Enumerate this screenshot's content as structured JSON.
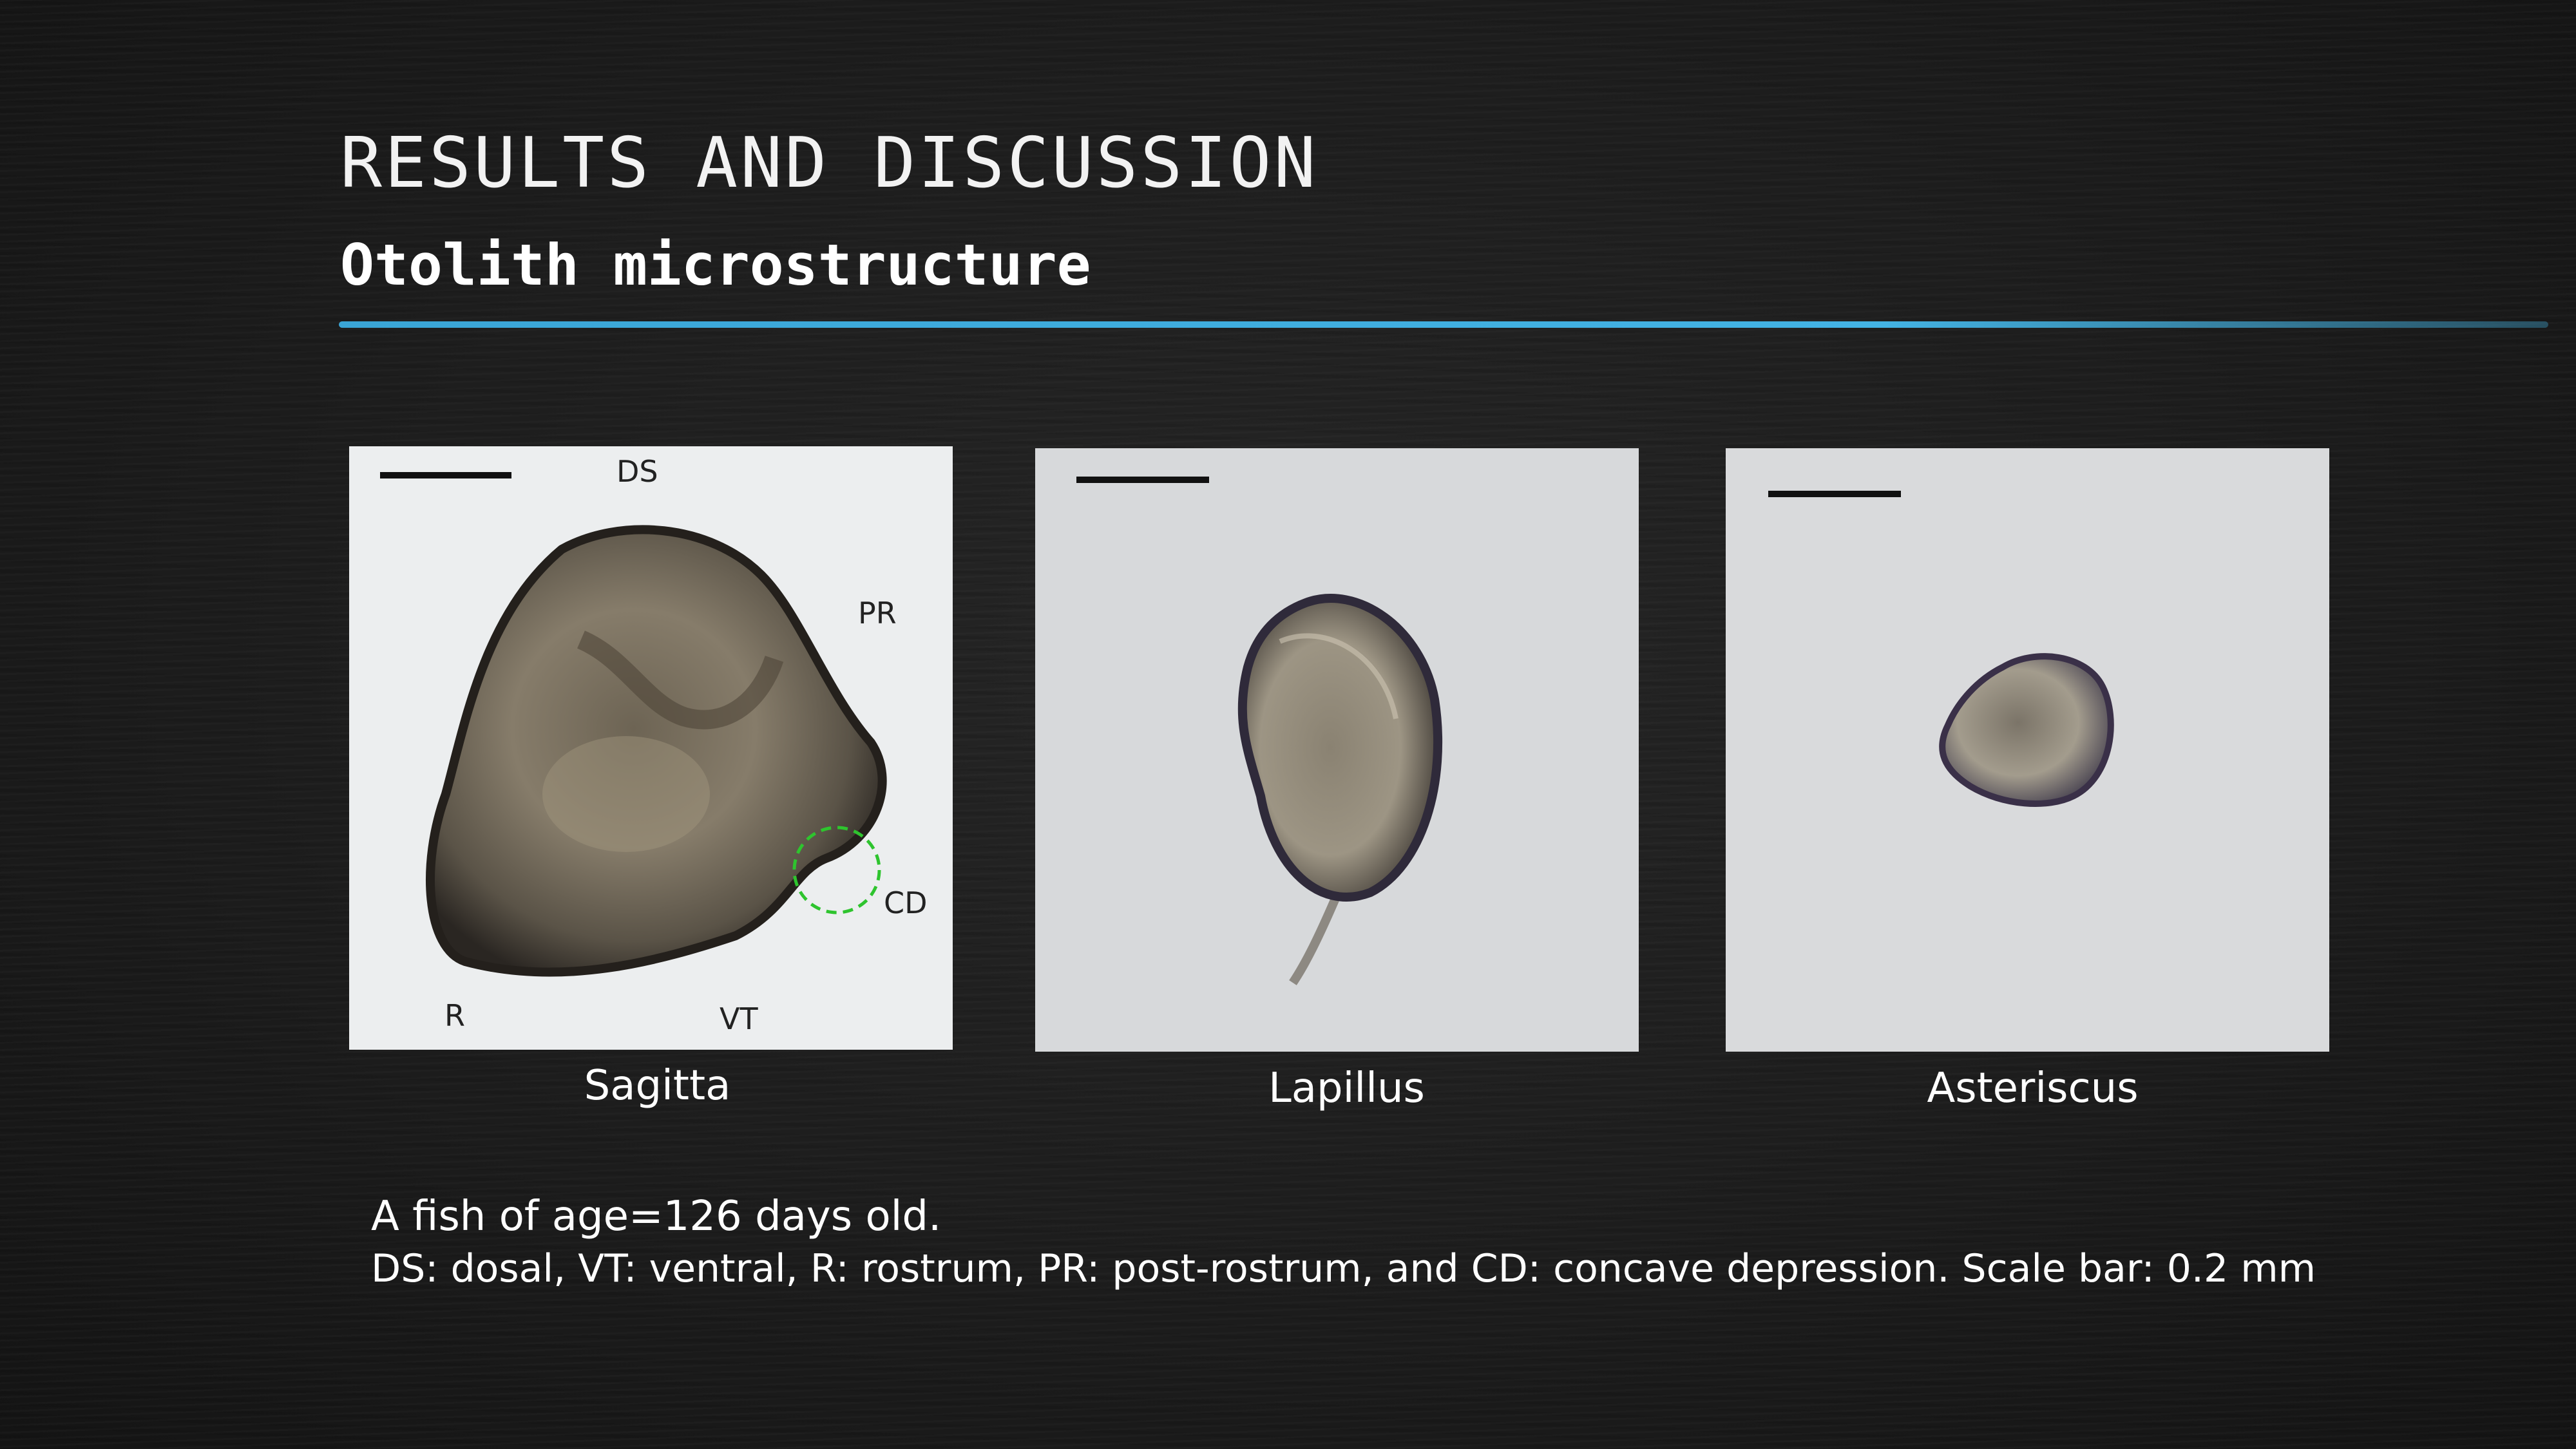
{
  "slide": {
    "title": "RESULTS AND DISCUSSION",
    "subtitle": "Otolith microstructure",
    "accent_color": "#43b3e4"
  },
  "panels": [
    {
      "caption": "Sagitta",
      "labels": {
        "ds": "DS",
        "pr": "PR",
        "cd": "CD",
        "r": "R",
        "vt": "VT"
      }
    },
    {
      "caption": "Lapillus"
    },
    {
      "caption": "Asteriscus"
    }
  ],
  "notes": {
    "line1": "A fish of age=126 days old.",
    "line2": "DS: dosal, VT: ventral, R: rostrum, PR: post-rostrum, and CD: concave depression. Scale bar: 0.2 mm"
  }
}
